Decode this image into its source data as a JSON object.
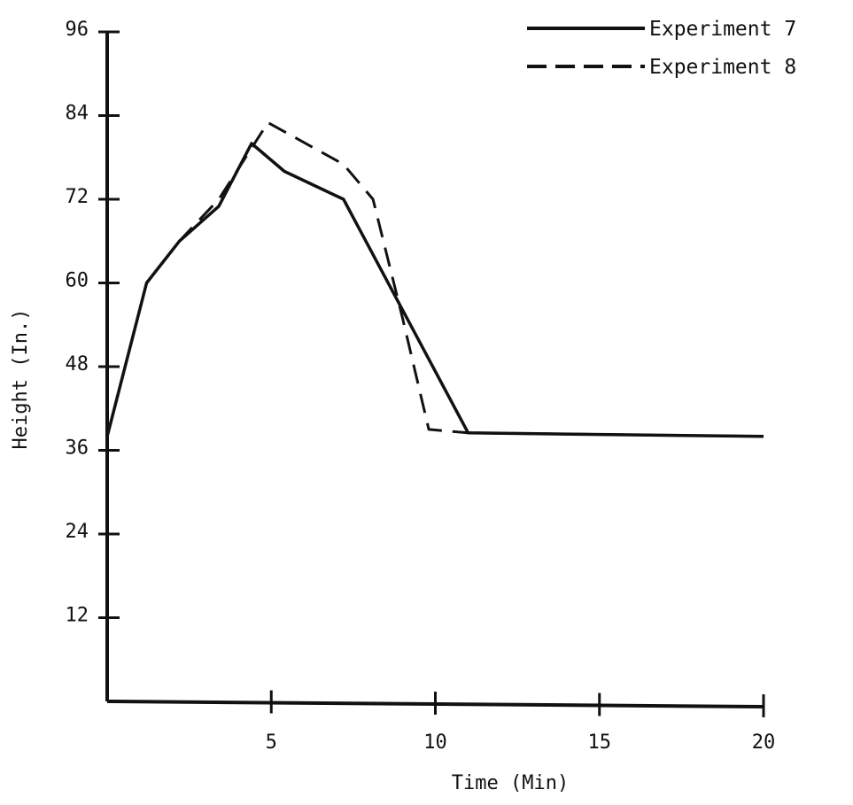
{
  "chart_data": {
    "type": "line",
    "title": "",
    "xlabel": "Time (Min)",
    "ylabel": "Height (In.)",
    "xlim": [
      0,
      20
    ],
    "ylim": [
      0,
      96
    ],
    "xticks": [
      5,
      10,
      15,
      20
    ],
    "yticks": [
      12,
      24,
      36,
      48,
      60,
      72,
      84,
      96
    ],
    "grid": false,
    "legend_position": "top-right",
    "series": [
      {
        "name": "Experiment 7",
        "style": "solid",
        "color": "#111111",
        "points": [
          [
            0,
            38
          ],
          [
            1.2,
            60
          ],
          [
            2.2,
            66
          ],
          [
            3.4,
            71
          ],
          [
            4.4,
            80
          ],
          [
            5.4,
            76
          ],
          [
            7.2,
            72
          ],
          [
            11.0,
            38.5
          ],
          [
            20,
            38
          ]
        ]
      },
      {
        "name": "Experiment 8",
        "style": "dashed",
        "color": "#111111",
        "points": [
          [
            0,
            38
          ],
          [
            1.2,
            60
          ],
          [
            2.2,
            66
          ],
          [
            3.4,
            72
          ],
          [
            4.9,
            83
          ],
          [
            7.2,
            77
          ],
          [
            8.1,
            72
          ],
          [
            9.0,
            55
          ],
          [
            9.8,
            39
          ],
          [
            11.0,
            38.5
          ],
          [
            20,
            38
          ]
        ]
      }
    ]
  }
}
